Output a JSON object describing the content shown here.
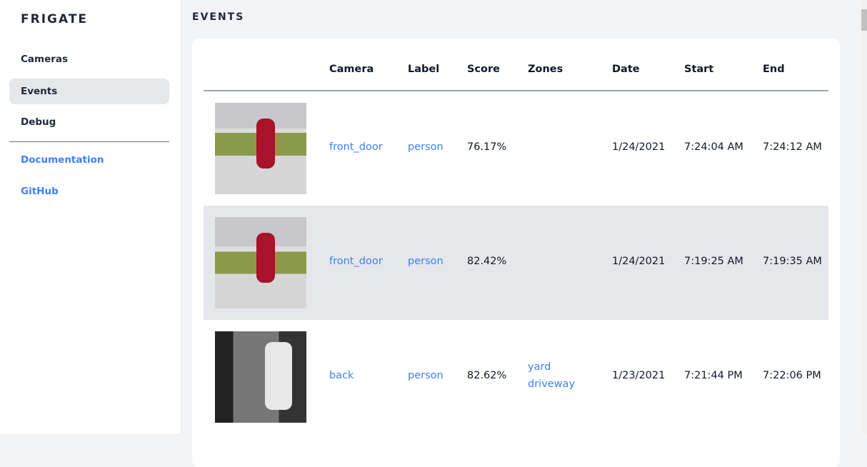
{
  "sidebar": {
    "logo": "FRIGATE",
    "items": [
      {
        "label": "Cameras"
      },
      {
        "label": "Events",
        "active": true
      },
      {
        "label": "Debug"
      }
    ],
    "links": [
      {
        "label": "Documentation"
      },
      {
        "label": "GitHub"
      }
    ]
  },
  "page": {
    "title": "EVENTS"
  },
  "table": {
    "headers": [
      "Camera",
      "Label",
      "Score",
      "Zones",
      "Date",
      "Start",
      "End"
    ],
    "rows": [
      {
        "camera": "front_door",
        "label": "person",
        "score": "76.17%",
        "zones": [
          "",
          ""
        ],
        "date": "1/24/2021",
        "start": "7:24:04 AM",
        "end": "7:24:12 AM"
      },
      {
        "camera": "front_door",
        "label": "person",
        "score": "82.42%",
        "zones": [
          "",
          ""
        ],
        "date": "1/24/2021",
        "start": "7:19:25 AM",
        "end": "7:19:35 AM"
      },
      {
        "camera": "back",
        "label": "person",
        "score": "82.62%",
        "zones": [
          "yard",
          "driveway"
        ],
        "date": "1/23/2021",
        "start": "7:21:44 PM",
        "end": "7:22:06 PM"
      }
    ]
  },
  "colors": {
    "accent": "#3b82f6",
    "active_bg": "#e5e7eb"
  }
}
